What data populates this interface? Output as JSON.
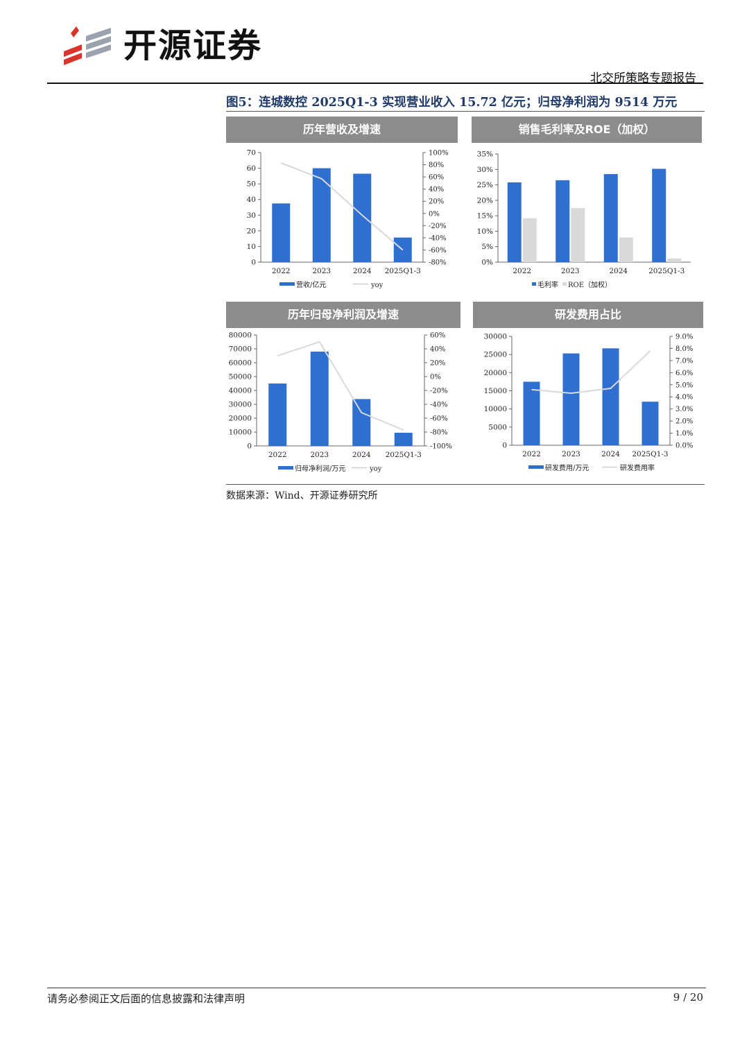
{
  "header": {
    "logo_text": "开源证券",
    "report_type": "北交所策略专题报告"
  },
  "figure": {
    "title": "图5：连城数控 2025Q1-3 实现营业收入 15.72 亿元；归母净利润为 9514 万元",
    "source": "数据来源：Wind、开源证券研究所"
  },
  "footer": {
    "disclaimer": "请务必参阅正文后面的信息披露和法律声明",
    "page": "9 / 20"
  },
  "colors": {
    "bar": "#2e6fd0",
    "bar_secondary": "#d9d9d9",
    "line": "#d9d9d9",
    "header_bg": "#8c8c8c"
  },
  "chart_data": [
    {
      "id": "revenue",
      "type": "bar",
      "title": "历年营收及增速",
      "categories": [
        "2022",
        "2023",
        "2024",
        "2025Q1-3"
      ],
      "series": [
        {
          "name": "营收/亿元",
          "type": "bar",
          "axis": "left",
          "values": [
            37.5,
            60,
            56.5,
            15.72
          ]
        },
        {
          "name": "yoy",
          "type": "line",
          "axis": "right",
          "values": [
            83,
            57,
            -3,
            -60
          ]
        }
      ],
      "ylim": [
        0,
        70
      ],
      "y_ticks": [
        "0",
        "10",
        "20",
        "30",
        "40",
        "50",
        "60",
        "70"
      ],
      "y2lim": [
        -80,
        100
      ],
      "y2_ticks": [
        "-80%",
        "-60%",
        "-40%",
        "-20%",
        "0%",
        "20%",
        "40%",
        "60%",
        "80%",
        "100%"
      ],
      "legend_position": "bottom"
    },
    {
      "id": "margin",
      "type": "bar",
      "title": "销售毛利率及ROE（加权）",
      "categories": [
        "2022",
        "2023",
        "2024",
        "2025Q1-3"
      ],
      "series": [
        {
          "name": "毛利率",
          "type": "bar",
          "axis": "left",
          "values": [
            25.8,
            26.5,
            28.5,
            30.2
          ]
        },
        {
          "name": "ROE（加权）",
          "type": "bar2",
          "axis": "left",
          "values": [
            14.2,
            17.5,
            8.0,
            1.2
          ]
        }
      ],
      "ylim": [
        0,
        35
      ],
      "y_ticks": [
        "0%",
        "5%",
        "10%",
        "15%",
        "20%",
        "25%",
        "30%",
        "35%"
      ],
      "legend_position": "bottom"
    },
    {
      "id": "profit",
      "type": "bar",
      "title": "历年归母净利润及增速",
      "categories": [
        "2022",
        "2023",
        "2024",
        "2025Q1-3"
      ],
      "series": [
        {
          "name": "归母净利润/万元",
          "type": "bar",
          "axis": "left",
          "values": [
            45000,
            68000,
            33800,
            9514
          ]
        },
        {
          "name": "yoy",
          "type": "line",
          "axis": "right",
          "values": [
            30,
            50,
            -52,
            -77
          ]
        }
      ],
      "ylim": [
        0,
        80000
      ],
      "y_ticks": [
        "0",
        "10000",
        "20000",
        "30000",
        "40000",
        "50000",
        "60000",
        "70000",
        "80000"
      ],
      "y2lim": [
        -100,
        60
      ],
      "y2_ticks": [
        "-100%",
        "-80%",
        "-60%",
        "-40%",
        "-20%",
        "0%",
        "20%",
        "40%",
        "60%"
      ],
      "legend_position": "bottom"
    },
    {
      "id": "rd",
      "type": "bar",
      "title": "研发费用占比",
      "categories": [
        "2022",
        "2023",
        "2024",
        "2025Q1-3"
      ],
      "series": [
        {
          "name": "研发费用/万元",
          "type": "bar",
          "axis": "left",
          "values": [
            17500,
            25300,
            26700,
            12000
          ]
        },
        {
          "name": "研发费用率",
          "type": "line",
          "axis": "right",
          "values": [
            4.6,
            4.3,
            4.7,
            7.8
          ]
        }
      ],
      "ylim": [
        0,
        30000
      ],
      "y_ticks": [
        "0",
        "5000",
        "10000",
        "15000",
        "20000",
        "25000",
        "30000"
      ],
      "y2lim": [
        0,
        9
      ],
      "y2_ticks": [
        "0.0%",
        "1.0%",
        "2.0%",
        "3.0%",
        "4.0%",
        "5.0%",
        "6.0%",
        "7.0%",
        "8.0%",
        "9.0%"
      ],
      "legend_position": "bottom"
    }
  ]
}
